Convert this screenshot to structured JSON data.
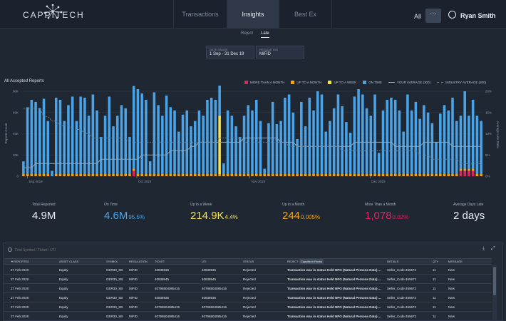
{
  "app": {
    "brand": "CAPPITECH",
    "nav_tabs": [
      "Transactions",
      "Insights",
      "Best Ex"
    ],
    "scope": "All",
    "more": "···",
    "user_name": "Ryan Smith"
  },
  "subtabs": [
    "Reject",
    "Late"
  ],
  "filters": {
    "date_range_label": "DATE RANGE",
    "date_range_value": "1 Sep - 31 Dec 19",
    "regulation_label": "REGULATION",
    "regulation_value": "MiFID"
  },
  "chart": {
    "title": "All Accepted Reports",
    "legend": [
      {
        "label": "MORE THAN A MONTH",
        "color": "#e0245e",
        "kind": "box"
      },
      {
        "label": "UP TO A MONTH",
        "color": "#f2a416",
        "kind": "box"
      },
      {
        "label": "UP TO A WEEK",
        "color": "#f3e24a",
        "kind": "box"
      },
      {
        "label": "ON TIME",
        "color": "#4aa3e6",
        "kind": "box"
      },
      {
        "label": "YOUR AVERAGE (300)",
        "color": "#9aa4b1",
        "kind": "line"
      },
      {
        "label": "INDUSTRY AVERAGE (300)",
        "color": "#6f7a88",
        "kind": "dash"
      }
    ]
  },
  "chart_data": {
    "type": "bar",
    "stacked": true,
    "title": "All Accepted Reports",
    "ylabel": "Reports Count",
    "y2label": "Average Late Ratio",
    "yticks": [
      "0",
      "20K",
      "40K",
      "60K",
      "80K"
    ],
    "ylim": [
      0,
      80000
    ],
    "y2ticks": [
      "0%",
      "5%",
      "10%",
      "15%",
      "20%"
    ],
    "y2lim": [
      0,
      20
    ],
    "xticks": [
      "Sep 2019",
      "Oct 2019",
      "Nov 2019",
      "Dec 2019"
    ],
    "grid": true,
    "series": [
      {
        "name": "ON TIME",
        "color": "#4aa3e6",
        "values": [
          12,
          63,
          70,
          68,
          62,
          71,
          50,
          5,
          72,
          70,
          50,
          65,
          73,
          50,
          73,
          72,
          55,
          75,
          60,
          35,
          55,
          73,
          45,
          55,
          65,
          62,
          35,
          78,
          80,
          76,
          70,
          12,
          77,
          65,
          55,
          74,
          63,
          60,
          40,
          56,
          60,
          45,
          50,
          60,
          55,
          70,
          72,
          70,
          60,
          10,
          60,
          55,
          45,
          35,
          55,
          65,
          60,
          70,
          50,
          5,
          48,
          68,
          47,
          50,
          72,
          75,
          58,
          33,
          68,
          45,
          72,
          60,
          78,
          75,
          40,
          50,
          62,
          75,
          64,
          49,
          39,
          73,
          80,
          75,
          62,
          55,
          75,
          20,
          60,
          70,
          72,
          70,
          60,
          40,
          75,
          60,
          68,
          52,
          65,
          58,
          48,
          30,
          57,
          65,
          60,
          72,
          50,
          50,
          73,
          50,
          65,
          55,
          50
        ]
      },
      {
        "name": "UP TO A WEEK",
        "color": "#f3e24a",
        "values": [
          0,
          0,
          0,
          0,
          0,
          0,
          0,
          0,
          0,
          0,
          0,
          0,
          0,
          0,
          0,
          0,
          0,
          0,
          0,
          0,
          0,
          0,
          0,
          0,
          0,
          0,
          0,
          0,
          0,
          0,
          0,
          0,
          0,
          0,
          0,
          0,
          0,
          0,
          0,
          0,
          0,
          0,
          0,
          0,
          0,
          0,
          0,
          0,
          55,
          0,
          0,
          0,
          0,
          0,
          0,
          0,
          0,
          0,
          0,
          0,
          0,
          0,
          0,
          0,
          0,
          0,
          0,
          0,
          0,
          0,
          0,
          0,
          0,
          0,
          0,
          0,
          0,
          0,
          0,
          0,
          0,
          0,
          0,
          0,
          0,
          0,
          0,
          0,
          0,
          0,
          0,
          0,
          0,
          0,
          0,
          0,
          0,
          0,
          0,
          0,
          0,
          0,
          0,
          0,
          0,
          0,
          0,
          0,
          0,
          0,
          0,
          0,
          0
        ]
      },
      {
        "name": "UP TO A MONTH",
        "color": "#f2a416",
        "values": [
          2,
          2,
          2,
          2,
          2,
          2,
          2,
          0,
          2,
          2,
          2,
          2,
          2,
          2,
          2,
          2,
          2,
          2,
          2,
          2,
          2,
          2,
          2,
          2,
          2,
          2,
          2,
          2,
          2,
          2,
          2,
          2,
          2,
          2,
          2,
          2,
          2,
          2,
          2,
          2,
          2,
          2,
          2,
          2,
          2,
          2,
          2,
          2,
          2,
          2,
          2,
          2,
          2,
          2,
          2,
          2,
          2,
          2,
          2,
          2,
          2,
          2,
          2,
          2,
          2,
          2,
          2,
          2,
          2,
          2,
          2,
          2,
          2,
          2,
          2,
          2,
          2,
          2,
          2,
          2,
          2,
          2,
          2,
          2,
          2,
          2,
          2,
          2,
          2,
          2,
          2,
          2,
          2,
          2,
          2,
          2,
          2,
          2,
          2,
          2,
          2,
          2,
          2,
          2,
          2,
          2,
          2,
          2,
          2,
          2,
          2,
          2,
          2
        ]
      },
      {
        "name": "MORE THAN A MONTH",
        "color": "#e0245e",
        "values": [
          0,
          0,
          0,
          0,
          0,
          0,
          0,
          0,
          0,
          0,
          0,
          0,
          0,
          0,
          0,
          0,
          0,
          0,
          0,
          0,
          0,
          0,
          0,
          0,
          0,
          0,
          0,
          5,
          0,
          0,
          0,
          0,
          0,
          0,
          0,
          0,
          0,
          0,
          0,
          0,
          0,
          0,
          0,
          0,
          0,
          0,
          0,
          0,
          0,
          0,
          0,
          0,
          0,
          0,
          0,
          0,
          0,
          0,
          0,
          0,
          0,
          0,
          0,
          0,
          0,
          0,
          0,
          0,
          0,
          0,
          0,
          0,
          0,
          0,
          0,
          0,
          0,
          0,
          0,
          0,
          0,
          0,
          0,
          0,
          0,
          0,
          0,
          0,
          0,
          0,
          0,
          0,
          0,
          0,
          0,
          0,
          0,
          0,
          0,
          0,
          0,
          0,
          0,
          0,
          0,
          0,
          0,
          5,
          5,
          5,
          5,
          0,
          0
        ]
      }
    ],
    "lines": [
      {
        "name": "YOUR AVERAGE (300)",
        "color": "#9aa4b1",
        "dash": false,
        "values": [
          2,
          2,
          2,
          3,
          3,
          3,
          3,
          3,
          3,
          3,
          3,
          3,
          3,
          3,
          3,
          3,
          3,
          3,
          3,
          4,
          4,
          4,
          4,
          4,
          4,
          4,
          4,
          4,
          4,
          5,
          5,
          5,
          5,
          5,
          5,
          5,
          6,
          6,
          6,
          6,
          6,
          7,
          7,
          8,
          8,
          8,
          8,
          8,
          8,
          8,
          8,
          8,
          8,
          8,
          9,
          9,
          9,
          9,
          9,
          9,
          9,
          9,
          9,
          8,
          8,
          8,
          8,
          7,
          7,
          7,
          7,
          7,
          7,
          7,
          7,
          7,
          7,
          7,
          7,
          7,
          7,
          8,
          8,
          8,
          8,
          8,
          8,
          8,
          8,
          8,
          8,
          7,
          7,
          7,
          7,
          7,
          7,
          7,
          8,
          8,
          8,
          8,
          8,
          8,
          8,
          7,
          7,
          7,
          7,
          7,
          7,
          7,
          7
        ]
      },
      {
        "name": "INDUSTRY AVERAGE (300)",
        "color": "#6f7a88",
        "dash": true,
        "values": [
          16,
          16,
          16,
          16,
          16,
          14,
          14,
          13,
          13,
          12,
          12,
          12,
          11,
          11,
          11,
          10,
          10,
          9,
          9,
          9,
          9,
          9,
          9,
          9,
          9,
          9,
          8,
          8,
          8,
          8,
          8,
          8,
          8,
          8,
          8,
          8,
          8,
          8,
          8,
          8,
          8,
          8,
          8,
          8,
          8,
          8,
          8,
          8,
          9,
          9,
          9,
          9,
          9,
          9,
          8,
          8,
          8,
          8,
          8,
          8,
          8,
          8,
          8,
          8,
          8,
          7,
          7,
          7,
          7,
          7,
          7,
          7,
          7,
          7,
          7,
          7,
          7,
          7,
          6,
          6,
          6,
          6,
          6,
          6,
          6,
          6,
          6,
          6,
          6,
          6,
          6,
          6,
          6,
          6,
          6,
          6,
          6,
          5,
          5,
          5,
          4,
          4,
          4,
          4,
          4,
          4,
          4,
          3,
          3,
          3,
          3,
          3,
          3
        ]
      }
    ]
  },
  "stats": [
    {
      "label": "Total Reported",
      "value": "4.9M",
      "pct": "",
      "color": "#e8edf3"
    },
    {
      "label": "On Time",
      "value": "4.6M",
      "pct": "95.5%",
      "color": "#4aa3e6"
    },
    {
      "label": "Up to a Week",
      "value": "214.9K",
      "pct": "4.4%",
      "color": "#f3e24a"
    },
    {
      "label": "Up to a Month",
      "value": "244",
      "pct": "0.005%",
      "color": "#f2a416"
    },
    {
      "label": "More Than a Month",
      "value": "1,078",
      "pct": "0.02%",
      "color": "#e0245e"
    },
    {
      "label": "Average Days Late",
      "value": "2 days",
      "pct": "",
      "color": "#e8edf3"
    }
  ],
  "table": {
    "search_placeholder": "Find Symbol / Ticket / UTI",
    "tag": "Cappitech Rocks",
    "columns": [
      "▼REPORTED",
      "ASSET CLASS",
      "SYMBOL",
      "REGULATION",
      "TICKET",
      "UTI",
      "STATUS",
      "REJECT",
      "DETAILS",
      "QTY",
      "MESSAGE"
    ],
    "rows": [
      [
        "27 Feb 2020",
        "Equity",
        "GER30_SB",
        "MiFID",
        "40838936",
        "40838936",
        "Rejected",
        "Transaction was in status Held NPO (Natural Persons Data) ...",
        "Seller_Code:455672",
        "11",
        "New"
      ],
      [
        "27 Feb 2020",
        "Equity",
        "GER30_SB",
        "MiFID",
        "40838945",
        "40838945",
        "Rejected",
        "Transaction was in status Held NPO (Natural Persons Data) ...",
        "Seller_Code:455672",
        "11",
        "New"
      ],
      [
        "27 Feb 2020",
        "Equity",
        "GER30_SB",
        "MiFID",
        "40796504085416",
        "40796504085416",
        "Rejected",
        "Transaction was in status Held NPO (Natural Persons Data) ...",
        "Seller_Code:455672",
        "11",
        "New"
      ],
      [
        "27 Feb 2020",
        "Equity",
        "GER30_SB",
        "MiFID",
        "40838936",
        "40838936",
        "Rejected",
        "Transaction was in status Held NPO (Natural Persons Data) ...",
        "Seller_Code:455672",
        "11",
        "New"
      ],
      [
        "27 Feb 2020",
        "Equity",
        "GER30_SB",
        "MiFID",
        "40796504085416",
        "40796504085416",
        "Rejected",
        "Transaction was in status Held NPO (Natural Persons Data) ...",
        "Seller_Code:455672",
        "11",
        "New"
      ],
      [
        "27 Feb 2020",
        "Equity",
        "GER30_SB",
        "MiFID",
        "40796504085416",
        "40796504085416",
        "Rejected",
        "Transaction was in status Held NPO (Natural Persons Data) ...",
        "Seller_Code:455672",
        "11",
        "New"
      ]
    ]
  }
}
